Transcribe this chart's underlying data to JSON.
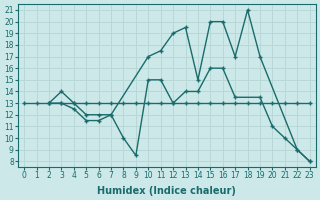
{
  "xlabel": "Humidex (Indice chaleur)",
  "bg_color": "#cce8e8",
  "line_color": "#1a6b6b",
  "grid_color": "#b8d8d8",
  "xlim": [
    -0.5,
    23.5
  ],
  "ylim": [
    7.5,
    21.5
  ],
  "xticks": [
    0,
    1,
    2,
    3,
    4,
    5,
    6,
    7,
    8,
    9,
    10,
    11,
    12,
    13,
    14,
    15,
    16,
    17,
    18,
    19,
    20,
    21,
    22,
    23
  ],
  "yticks": [
    8,
    9,
    10,
    11,
    12,
    13,
    14,
    15,
    16,
    17,
    18,
    19,
    20,
    21
  ],
  "series": [
    {
      "x": [
        2,
        3,
        4,
        5,
        6,
        7,
        10,
        11,
        12,
        13,
        14,
        15,
        16,
        17,
        18,
        19,
        22,
        23
      ],
      "y": [
        13,
        14,
        13,
        12,
        12,
        12,
        17,
        17.5,
        19,
        19.5,
        15,
        20,
        20,
        17,
        21,
        17,
        9,
        8
      ]
    },
    {
      "x": [
        0,
        1,
        2,
        3,
        4,
        5,
        6,
        7,
        8,
        9,
        10,
        11,
        12,
        13,
        14,
        15,
        16,
        17,
        18,
        19,
        20,
        21,
        22,
        23
      ],
      "y": [
        13,
        13,
        13,
        13,
        13,
        13,
        13,
        13,
        13,
        13,
        13,
        13,
        13,
        13,
        13,
        13,
        13,
        13,
        13,
        13,
        13,
        13,
        13,
        13
      ]
    },
    {
      "x": [
        2,
        3,
        4,
        5,
        6,
        7,
        8,
        9,
        10,
        11,
        12,
        13,
        14,
        15,
        16,
        17,
        19,
        20,
        21,
        22,
        23
      ],
      "y": [
        13,
        13,
        12.5,
        11.5,
        11.5,
        12,
        10,
        8.5,
        15,
        15,
        13,
        14,
        14,
        16,
        16,
        13.5,
        13.5,
        11,
        10,
        9,
        8
      ]
    }
  ]
}
